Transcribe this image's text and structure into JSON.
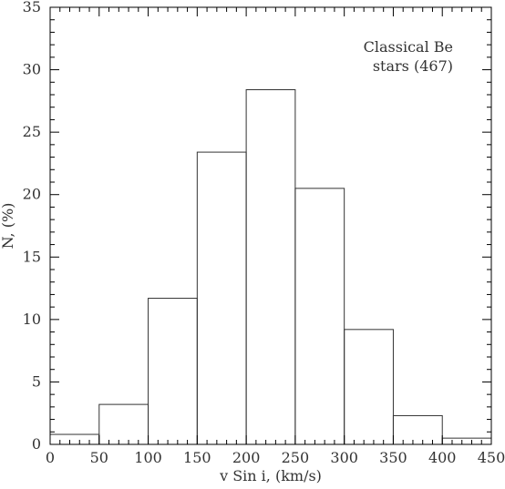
{
  "chart_data": {
    "type": "bar",
    "title": "",
    "xlabel": "v Sin i, (km/s)",
    "ylabel": "N, (%)",
    "annotation_lines": [
      "Classical Be",
      "stars (467)"
    ],
    "bin_edges": [
      0,
      50,
      100,
      150,
      200,
      250,
      300,
      350,
      400,
      450
    ],
    "values": [
      0.8,
      3.2,
      11.7,
      23.4,
      28.4,
      20.5,
      9.2,
      2.3,
      0.5
    ],
    "xlim": [
      0,
      450
    ],
    "ylim": [
      0,
      35
    ],
    "xticks": [
      0,
      50,
      100,
      150,
      200,
      250,
      300,
      350,
      400,
      450
    ],
    "yticks": [
      0,
      5,
      10,
      15,
      20,
      25,
      30,
      35
    ],
    "grid": false,
    "legend": "none"
  }
}
